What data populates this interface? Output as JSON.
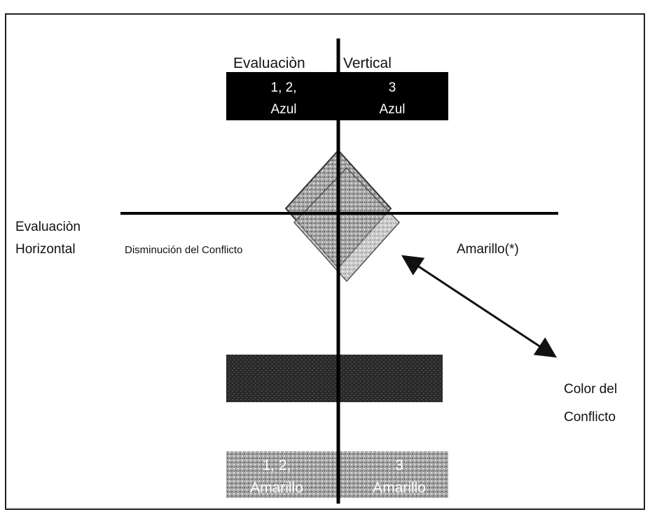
{
  "vertical_eval": {
    "label_left": "Evaluaciòn",
    "label_right": "Vertical"
  },
  "top_box": {
    "left": [
      "1, 2,",
      "Azul"
    ],
    "right": [
      "3",
      "Azul"
    ]
  },
  "horizontal_eval": {
    "label": [
      "Evaluaciòn",
      "Horizontal"
    ],
    "left": "Disminución del Conflicto",
    "right": "Amarillo(*)"
  },
  "conflict_color": [
    "Color del",
    "Conflicto"
  ],
  "bottom_box": {
    "left": [
      "1, 2,",
      "Amarillo"
    ],
    "right": [
      "3",
      "Amarillo"
    ]
  }
}
